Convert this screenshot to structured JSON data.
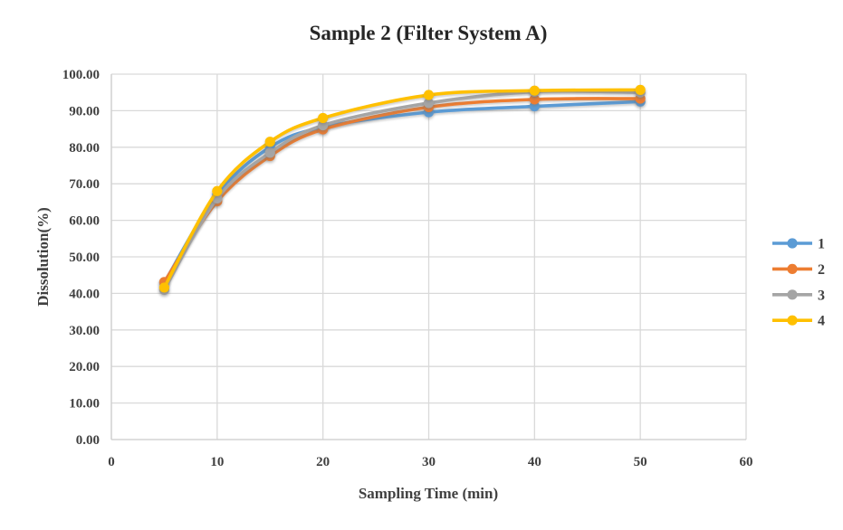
{
  "chart_data": {
    "type": "line",
    "title": "Sample 2 (Filter System A)",
    "xlabel": "Sampling Time (min)",
    "ylabel": "Dissolution(%)",
    "x": [
      5,
      10,
      15,
      20,
      30,
      40,
      50
    ],
    "series": [
      {
        "name": "1",
        "color": "#5B9BD5",
        "values": [
          42.9,
          67.0,
          80.0,
          85.5,
          89.6,
          91.2,
          92.5
        ]
      },
      {
        "name": "2",
        "color": "#ED7D31",
        "values": [
          43.1,
          65.2,
          77.6,
          84.9,
          91.0,
          93.1,
          93.3
        ]
      },
      {
        "name": "3",
        "color": "#A5A5A5",
        "values": [
          41.0,
          66.0,
          78.5,
          86.0,
          92.1,
          95.2,
          95.0
        ]
      },
      {
        "name": "4",
        "color": "#FFC000",
        "values": [
          41.6,
          68.0,
          81.5,
          88.0,
          94.3,
          95.5,
          95.7
        ]
      }
    ],
    "xlim": [
      0,
      60
    ],
    "ylim": [
      0,
      100
    ],
    "x_ticks": [
      "0",
      "10",
      "20",
      "30",
      "40",
      "50",
      "60"
    ],
    "y_ticks": [
      "0.00",
      "10.00",
      "20.00",
      "30.00",
      "40.00",
      "50.00",
      "60.00",
      "70.00",
      "80.00",
      "90.00",
      "100.00"
    ],
    "grid": true,
    "legend_position": "right",
    "marker": "circle",
    "colors": {
      "grid": "#D9D9D9",
      "axis": "#CFCFCF",
      "tick_text": "#404040",
      "title_text": "#262626"
    }
  }
}
